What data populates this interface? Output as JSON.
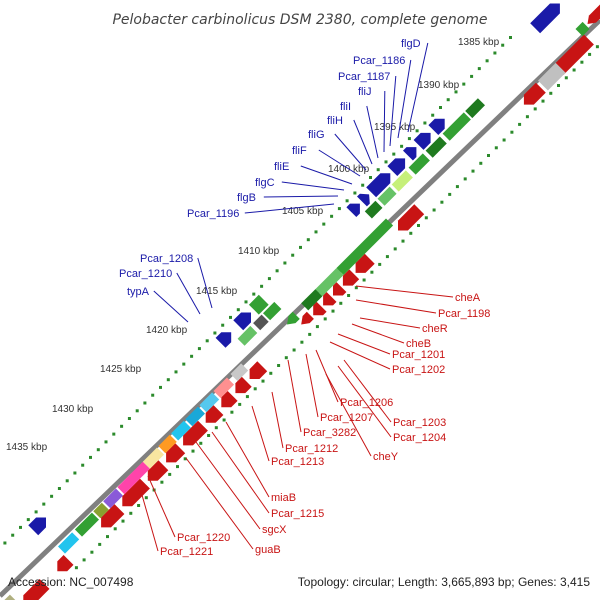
{
  "map": {
    "title": "Pelobacter carbinolicus DSM 2380, complete genome",
    "footer": {
      "accession": "Accession: NC_007498",
      "summary": "Topology: circular; Length: 3,665,893 bp; Genes: 3,415"
    },
    "colors": {
      "forward": "#1a1aa8",
      "reverse": "#c81414",
      "backbone": "#808080",
      "tick": "#2b8a2b"
    },
    "base_labels": [
      "1385 kbp",
      "1390 kbp",
      "1395 kbp",
      "1400 kbp",
      "1405 kbp",
      "1410 kbp",
      "1415 kbp",
      "1420 kbp",
      "1425 kbp",
      "1430 kbp",
      "1435 kbp"
    ],
    "forward_genes": [
      "flgD",
      "Pcar_1186",
      "Pcar_1187",
      "fliJ",
      "fliI",
      "fliH",
      "fliG",
      "fliF",
      "fliE",
      "flgC",
      "flgB",
      "Pcar_1196",
      "Pcar_1208",
      "Pcar_1210",
      "typA"
    ],
    "reverse_genes": [
      "cheA",
      "Pcar_1198",
      "cheR",
      "cheB",
      "Pcar_1201",
      "Pcar_1202",
      "Pcar_1206",
      "Pcar_1203",
      "Pcar_1207",
      "Pcar_1204",
      "Pcar_3282",
      "cheY",
      "Pcar_1212",
      "Pcar_1213",
      "miaB",
      "Pcar_1215",
      "sgcX",
      "Pcar_1220",
      "guaB",
      "Pcar_1221"
    ]
  }
}
